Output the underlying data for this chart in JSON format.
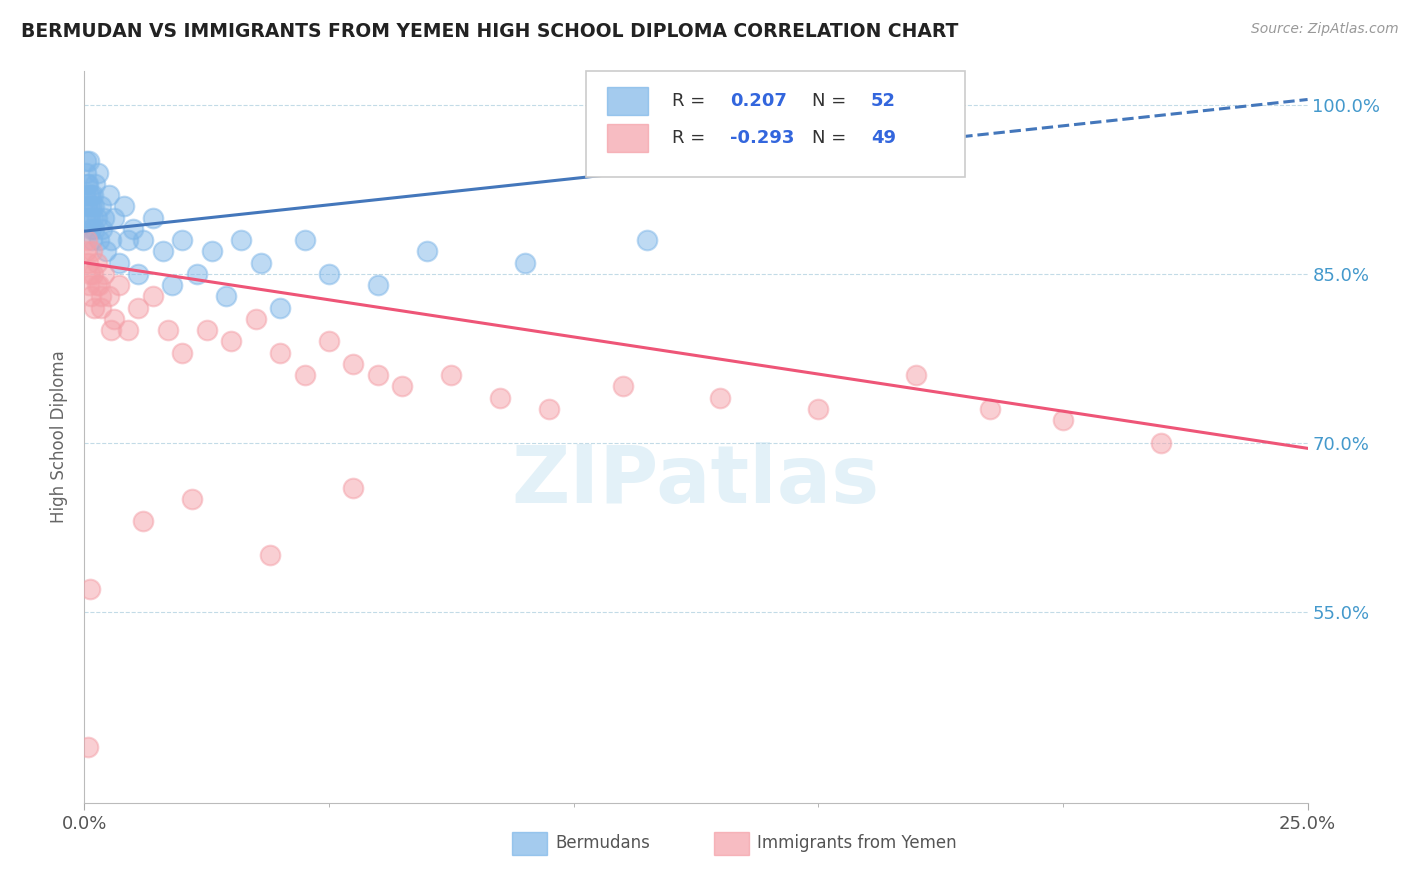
{
  "title": "BERMUDAN VS IMMIGRANTS FROM YEMEN HIGH SCHOOL DIPLOMA CORRELATION CHART",
  "source": "Source: ZipAtlas.com",
  "ylabel": "High School Diploma",
  "xlim": [
    0.0,
    25.0
  ],
  "ylim": [
    38.0,
    103.0
  ],
  "yticks": [
    55.0,
    70.0,
    85.0,
    100.0
  ],
  "ytick_labels": [
    "55.0%",
    "70.0%",
    "85.0%",
    "100.0%"
  ],
  "blue_R": 0.207,
  "blue_N": 52,
  "pink_R": -0.293,
  "pink_N": 49,
  "blue_color": "#7EB6E8",
  "pink_color": "#F4A0A8",
  "blue_line_color": "#4477BB",
  "pink_line_color": "#EE5577",
  "legend_label_blue": "Bermudans",
  "legend_label_pink": "Immigrants from Yemen",
  "blue_x": [
    0.02,
    0.03,
    0.04,
    0.05,
    0.06,
    0.07,
    0.08,
    0.09,
    0.1,
    0.11,
    0.12,
    0.13,
    0.14,
    0.15,
    0.16,
    0.17,
    0.18,
    0.19,
    0.2,
    0.22,
    0.25,
    0.28,
    0.3,
    0.33,
    0.36,
    0.4,
    0.45,
    0.5,
    0.55,
    0.6,
    0.7,
    0.8,
    0.9,
    1.0,
    1.1,
    1.2,
    1.4,
    1.6,
    1.8,
    2.0,
    2.3,
    2.6,
    2.9,
    3.2,
    3.6,
    4.0,
    4.5,
    5.0,
    6.0,
    7.0,
    9.0,
    11.5
  ],
  "blue_y": [
    92,
    95,
    94,
    93,
    91,
    90,
    93,
    92,
    95,
    91,
    90,
    92,
    89,
    88,
    91,
    90,
    92,
    89,
    91,
    93,
    90,
    94,
    88,
    91,
    89,
    90,
    87,
    92,
    88,
    90,
    86,
    91,
    88,
    89,
    85,
    88,
    90,
    87,
    84,
    88,
    85,
    87,
    83,
    88,
    86,
    82,
    88,
    85,
    84,
    87,
    86,
    88
  ],
  "pink_x": [
    0.03,
    0.05,
    0.07,
    0.09,
    0.11,
    0.13,
    0.15,
    0.18,
    0.2,
    0.25,
    0.3,
    0.35,
    0.4,
    0.5,
    0.6,
    0.7,
    0.9,
    1.1,
    1.4,
    1.7,
    2.0,
    2.5,
    3.0,
    3.5,
    4.0,
    4.5,
    5.0,
    5.5,
    6.0,
    6.5,
    7.5,
    8.5,
    9.5,
    11.0,
    13.0,
    15.0,
    17.0,
    18.5,
    20.0,
    22.0,
    0.08,
    0.12,
    0.25,
    0.35,
    0.55,
    1.2,
    2.2,
    3.8,
    5.5
  ],
  "pink_y": [
    87,
    88,
    86,
    84,
    85,
    83,
    87,
    85,
    82,
    86,
    84,
    82,
    85,
    83,
    81,
    84,
    80,
    82,
    83,
    80,
    78,
    80,
    79,
    81,
    78,
    76,
    79,
    77,
    76,
    75,
    76,
    74,
    73,
    75,
    74,
    73,
    76,
    73,
    72,
    70,
    43,
    57,
    84,
    83,
    80,
    63,
    65,
    60,
    66
  ],
  "blue_line_x0": 0.0,
  "blue_line_y0": 88.8,
  "blue_line_x1": 25.0,
  "blue_line_y1": 100.5,
  "blue_dash_start": 12.0,
  "pink_line_x0": 0.0,
  "pink_line_y0": 86.0,
  "pink_line_x1": 25.0,
  "pink_line_y1": 69.5
}
